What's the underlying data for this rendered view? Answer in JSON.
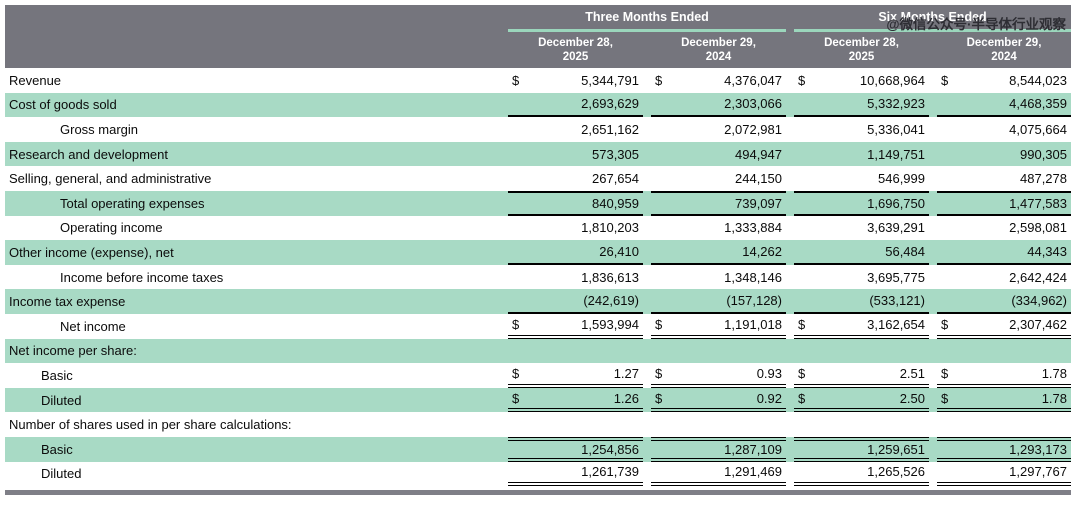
{
  "watermark": {
    "text": "@微信公众号·半导体行业观察"
  },
  "currency_symbol": "$",
  "colors": {
    "header_bg": "#75757d",
    "header_text": "#ffffff",
    "shaded_row_bg": "#a8dac5",
    "header_underline": "#9bd6bc",
    "rule_color": "#000000",
    "bottom_bar": "#7f7f87"
  },
  "header": {
    "groups": [
      "Three Months Ended",
      "Six Months Ended"
    ],
    "columns": [
      {
        "line1": "December 28,",
        "line2": "2025"
      },
      {
        "line1": "December 29,",
        "line2": "2024"
      },
      {
        "line1": "December 28,",
        "line2": "2025"
      },
      {
        "line1": "December 29,",
        "line2": "2024"
      }
    ]
  },
  "rows": [
    {
      "label": "Revenue",
      "indent": 0,
      "shaded": false,
      "dollar": true,
      "values": [
        "5,344,791",
        "4,376,047",
        "10,668,964",
        "8,544,023"
      ],
      "border_top": "none",
      "border_bottom": "none"
    },
    {
      "label": "Cost of goods sold",
      "indent": 0,
      "shaded": true,
      "dollar": false,
      "values": [
        "2,693,629",
        "2,303,066",
        "5,332,923",
        "4,468,359"
      ],
      "border_top": "none",
      "border_bottom": "single"
    },
    {
      "label": "Gross margin",
      "indent": 2,
      "shaded": false,
      "dollar": false,
      "values": [
        "2,651,162",
        "2,072,981",
        "5,336,041",
        "4,075,664"
      ],
      "border_top": "none",
      "border_bottom": "none"
    },
    {
      "label": "Research and development",
      "indent": 0,
      "shaded": true,
      "dollar": false,
      "values": [
        "573,305",
        "494,947",
        "1,149,751",
        "990,305"
      ],
      "border_top": "none",
      "border_bottom": "none"
    },
    {
      "label": "Selling, general, and administrative",
      "indent": 0,
      "shaded": false,
      "dollar": false,
      "values": [
        "267,654",
        "244,150",
        "546,999",
        "487,278"
      ],
      "border_top": "none",
      "border_bottom": "none"
    },
    {
      "label": "Total operating expenses",
      "indent": 2,
      "shaded": true,
      "dollar": false,
      "values": [
        "840,959",
        "739,097",
        "1,696,750",
        "1,477,583"
      ],
      "border_top": "single",
      "border_bottom": "single"
    },
    {
      "label": "Operating income",
      "indent": 2,
      "shaded": false,
      "dollar": false,
      "values": [
        "1,810,203",
        "1,333,884",
        "3,639,291",
        "2,598,081"
      ],
      "border_top": "none",
      "border_bottom": "none"
    },
    {
      "label": "Other income (expense), net",
      "indent": 0,
      "shaded": true,
      "dollar": false,
      "values": [
        "26,410",
        "14,262",
        "56,484",
        "44,343"
      ],
      "border_top": "none",
      "border_bottom": "single"
    },
    {
      "label": "Income before income taxes",
      "indent": 2,
      "shaded": false,
      "dollar": false,
      "values": [
        "1,836,613",
        "1,348,146",
        "3,695,775",
        "2,642,424"
      ],
      "border_top": "none",
      "border_bottom": "none"
    },
    {
      "label": "Income tax expense",
      "indent": 0,
      "shaded": true,
      "dollar": false,
      "values": [
        "(242,619)",
        "(157,128)",
        "(533,121)",
        "(334,962)"
      ],
      "border_top": "none",
      "border_bottom": "single"
    },
    {
      "label": "Net income",
      "indent": 2,
      "shaded": false,
      "dollar": true,
      "values": [
        "1,593,994",
        "1,191,018",
        "3,162,654",
        "2,307,462"
      ],
      "border_top": "none",
      "border_bottom": "double"
    },
    {
      "label": "Net income per share:",
      "indent": 0,
      "shaded": true,
      "dollar": false,
      "values": [
        "",
        "",
        "",
        ""
      ],
      "border_top": "none",
      "border_bottom": "none"
    },
    {
      "label": "Basic",
      "indent": 1,
      "shaded": false,
      "dollar": true,
      "values": [
        "1.27",
        "0.93",
        "2.51",
        "1.78"
      ],
      "border_top": "none",
      "border_bottom": "double"
    },
    {
      "label": "Diluted",
      "indent": 1,
      "shaded": true,
      "dollar": true,
      "values": [
        "1.26",
        "0.92",
        "2.50",
        "1.78"
      ],
      "border_top": "none",
      "border_bottom": "double"
    },
    {
      "label": "Number of shares used in per share calculations:",
      "indent": 0,
      "shaded": false,
      "dollar": false,
      "values": [
        "",
        "",
        "",
        ""
      ],
      "border_top": "none",
      "border_bottom": "none"
    },
    {
      "label": "Basic",
      "indent": 1,
      "shaded": true,
      "dollar": false,
      "values": [
        "1,254,856",
        "1,287,109",
        "1,259,651",
        "1,293,173"
      ],
      "border_top": "double",
      "border_bottom": "double"
    },
    {
      "label": "Diluted",
      "indent": 1,
      "shaded": false,
      "dollar": false,
      "values": [
        "1,261,739",
        "1,291,469",
        "1,265,526",
        "1,297,767"
      ],
      "border_top": "none",
      "border_bottom": "double"
    }
  ]
}
